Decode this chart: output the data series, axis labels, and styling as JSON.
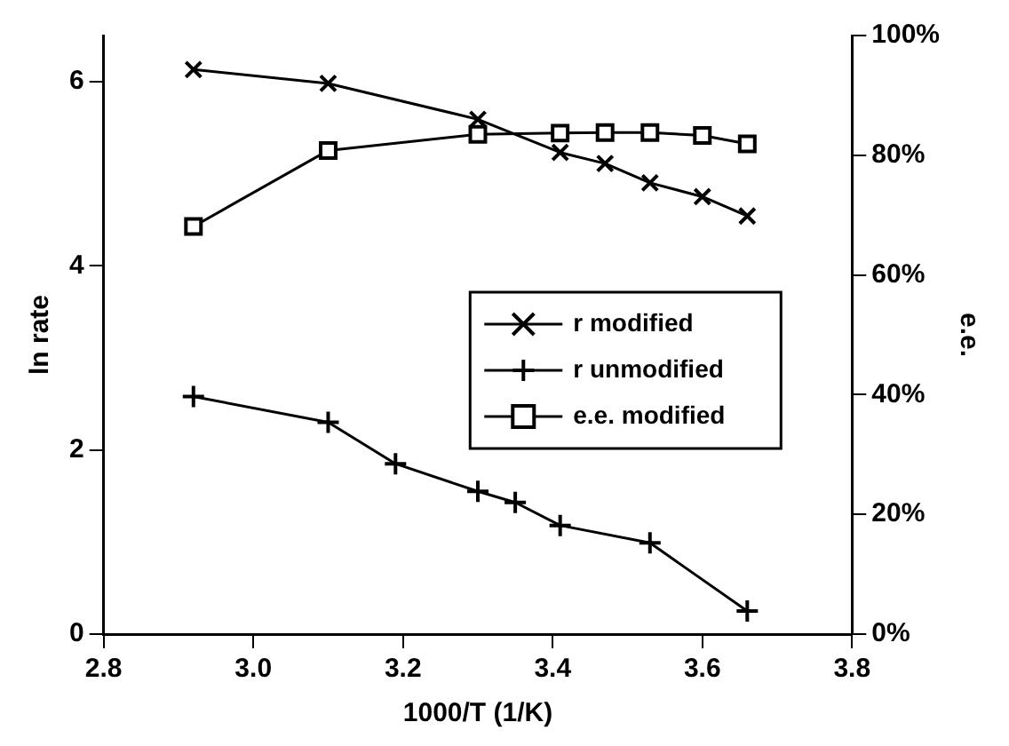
{
  "chart_data": {
    "type": "line",
    "xlabel": "1000/T (1/K)",
    "ylabel": "ln rate",
    "y2label": "e.e.",
    "xlim": [
      2.8,
      3.8
    ],
    "xticks": [
      {
        "value": 2.8,
        "label": "2.8"
      },
      {
        "value": 3.0,
        "label": "3.0"
      },
      {
        "value": 3.2,
        "label": "3.2"
      },
      {
        "value": 3.4,
        "label": "3.4"
      },
      {
        "value": 3.6,
        "label": "3.6"
      },
      {
        "value": 3.8,
        "label": "3.8"
      }
    ],
    "ylim": [
      0,
      6.5
    ],
    "yticks": [
      0,
      2,
      4,
      6
    ],
    "y2lim": [
      0,
      100
    ],
    "y2ticks": [
      {
        "value": 0,
        "label": "0%"
      },
      {
        "value": 20,
        "label": "20%"
      },
      {
        "value": 40,
        "label": "40%"
      },
      {
        "value": 60,
        "label": "60%"
      },
      {
        "value": 80,
        "label": "80%"
      },
      {
        "value": 100,
        "label": "100%"
      }
    ],
    "grid": false,
    "legend": "right",
    "series": [
      {
        "name": "r modified",
        "color": "#000000",
        "marker": "cross",
        "x": [
          2.92,
          3.1,
          3.3,
          3.41,
          3.47,
          3.53,
          3.6,
          3.66
        ],
        "values": [
          6.13,
          5.98,
          5.59,
          5.23,
          5.11,
          4.9,
          4.75,
          4.54
        ]
      },
      {
        "name": "r unmodified",
        "color": "#000000",
        "marker": "plus",
        "x": [
          2.92,
          3.1,
          3.19,
          3.3,
          3.35,
          3.41,
          3.53,
          3.66
        ],
        "values": [
          2.58,
          2.3,
          1.85,
          1.55,
          1.43,
          1.18,
          0.99,
          0.25
        ]
      },
      {
        "name": "e.e. modified",
        "color": "#000000",
        "marker": "square",
        "axis": "y2",
        "x": [
          2.92,
          3.1,
          3.3,
          3.41,
          3.47,
          3.53,
          3.6,
          3.66
        ],
        "values": [
          68.1,
          80.8,
          83.5,
          83.7,
          83.8,
          83.8,
          83.3,
          81.9
        ]
      }
    ]
  }
}
